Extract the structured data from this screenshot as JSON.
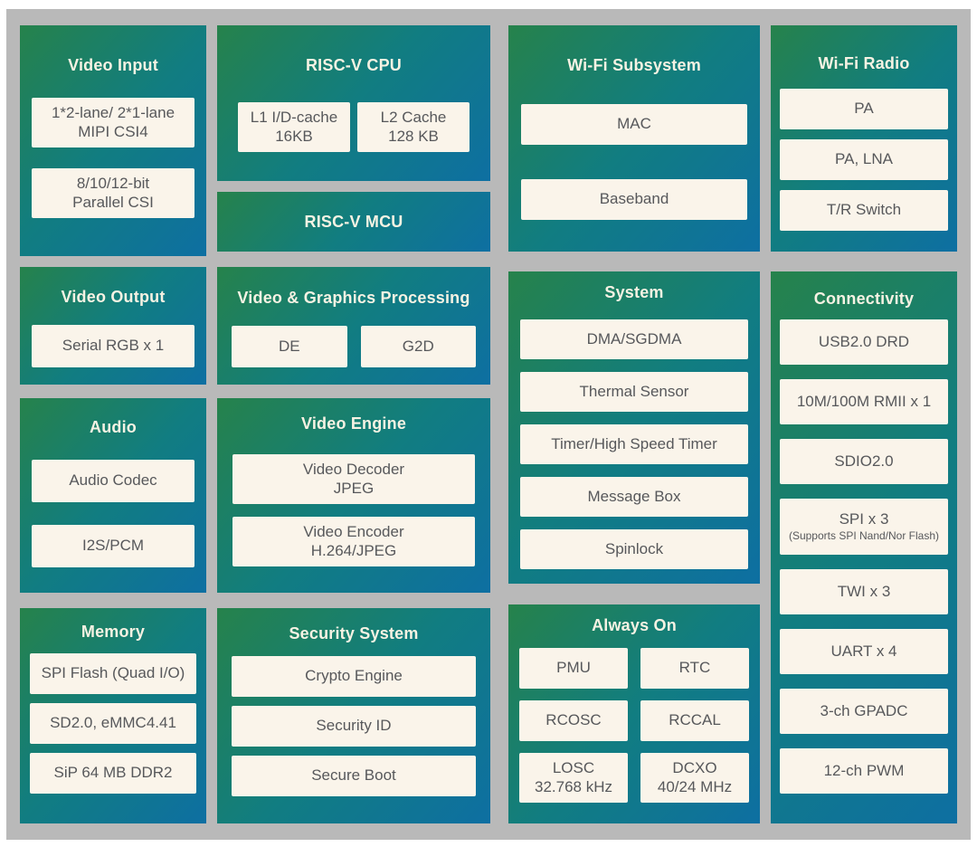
{
  "colors": {
    "frame_background": "#b9b9b9",
    "block_gradient_start": "#26824b",
    "block_gradient_mid": "#117d81",
    "block_gradient_end": "#0e6fa2",
    "box_background": "#faf4ea",
    "box_text": "#57585b",
    "title_text": "#f6f2e3"
  },
  "blocks": {
    "video_input": {
      "title": "Video Input",
      "boxes": [
        "1*2-lane/ 2*1-lane\nMIPI CSI4",
        "8/10/12-bit\nParallel CSI"
      ]
    },
    "video_output": {
      "title": "Video Output",
      "boxes": [
        "Serial RGB x 1"
      ]
    },
    "audio": {
      "title": "Audio",
      "boxes": [
        "Audio Codec",
        "I2S/PCM"
      ]
    },
    "memory": {
      "title": "Memory",
      "boxes": [
        "SPI Flash (Quad I/O)",
        "SD2.0, eMMC4.41",
        "SiP 64 MB DDR2"
      ]
    },
    "riscv_cpu": {
      "title": "RISC-V CPU",
      "boxes": [
        "L1 I/D-cache\n16KB",
        "L2 Cache\n128 KB"
      ]
    },
    "riscv_mcu": {
      "title": "RISC-V MCU"
    },
    "video_graphics_processing": {
      "title": "Video & Graphics Processing",
      "boxes": [
        "DE",
        "G2D"
      ]
    },
    "video_engine": {
      "title": "Video Engine",
      "boxes": [
        "Video Decoder\nJPEG",
        "Video Encoder\nH.264/JPEG"
      ]
    },
    "security_system": {
      "title": "Security System",
      "boxes": [
        "Crypto Engine",
        "Security ID",
        "Secure Boot"
      ]
    },
    "wifi_subsystem": {
      "title": "Wi-Fi Subsystem",
      "boxes": [
        "MAC",
        "Baseband"
      ]
    },
    "system": {
      "title": "System",
      "boxes": [
        "DMA/SGDMA",
        "Thermal Sensor",
        "Timer/High Speed Timer",
        "Message Box",
        "Spinlock"
      ]
    },
    "always_on": {
      "title": "Always On",
      "boxes": [
        "PMU",
        "RTC",
        "RCOSC",
        "RCCAL",
        "LOSC\n32.768 kHz",
        "DCXO\n40/24 MHz"
      ]
    },
    "wifi_radio": {
      "title": "Wi-Fi Radio",
      "boxes": [
        "PA",
        "PA, LNA",
        "T/R Switch"
      ]
    },
    "connectivity": {
      "title": "Connectivity",
      "boxes": [
        "USB2.0 DRD",
        "10M/100M RMII x 1",
        "SDIO2.0",
        "SPI x 3",
        "TWI x 3",
        "UART x 4",
        "3-ch GPADC",
        "12-ch PWM"
      ],
      "spi_note": "(Supports SPI Nand/Nor Flash)"
    }
  }
}
